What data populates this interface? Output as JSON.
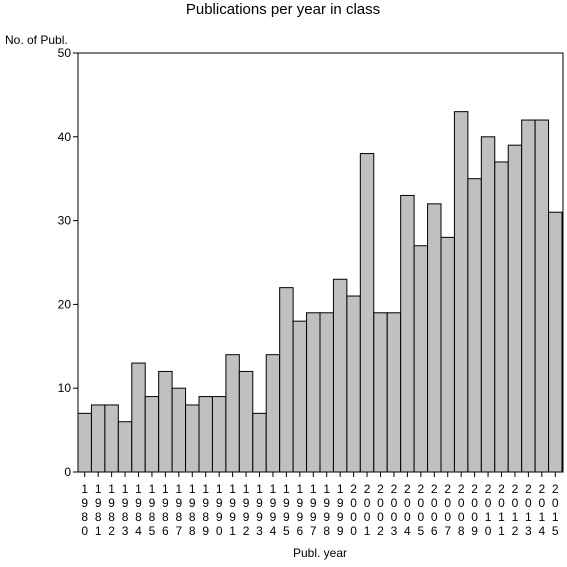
{
  "chart_data": {
    "type": "bar",
    "title": "Publications per year in class",
    "ylabel": "No. of Publ.",
    "xlabel": "Publ. year",
    "ylim": [
      0,
      50
    ],
    "yticks": [
      "0",
      "10",
      "20",
      "30",
      "40",
      "50"
    ],
    "categories": [
      "1980",
      "1981",
      "1982",
      "1983",
      "1984",
      "1985",
      "1986",
      "1987",
      "1988",
      "1989",
      "1990",
      "1991",
      "1992",
      "1993",
      "1994",
      "1995",
      "1996",
      "1997",
      "1998",
      "1999",
      "2000",
      "2001",
      "2002",
      "2003",
      "2004",
      "2005",
      "2006",
      "2007",
      "2008",
      "2009",
      "2010",
      "2011",
      "2012",
      "2013",
      "2014",
      "2015"
    ],
    "values": [
      7,
      8,
      8,
      6,
      13,
      9,
      12,
      10,
      8,
      9,
      9,
      14,
      12,
      7,
      14,
      22,
      18,
      19,
      19,
      23,
      21,
      38,
      19,
      19,
      33,
      27,
      32,
      28,
      43,
      35,
      40,
      37,
      39,
      42,
      42,
      31
    ],
    "bar_color": "#c0c0c0",
    "grid": false
  }
}
